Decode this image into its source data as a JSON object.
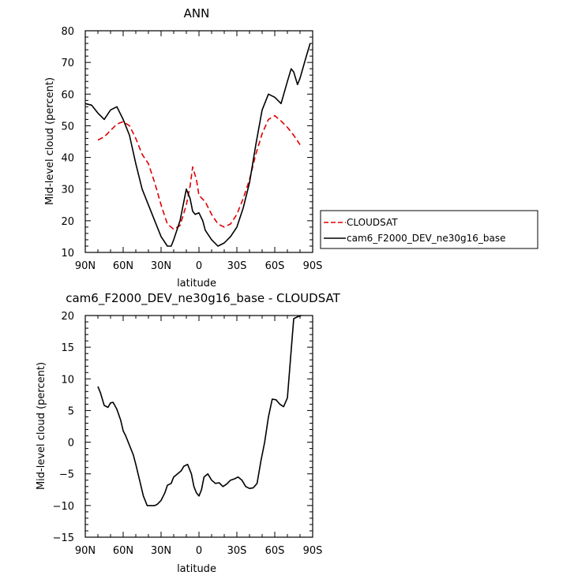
{
  "chart_data": [
    {
      "type": "line",
      "title": "ANN",
      "xlabel": "latitude",
      "ylabel": "Mid-level cloud (percent)",
      "xlim": [
        90,
        -90
      ],
      "ylim": [
        10,
        80
      ],
      "x_ticks": [
        "90N",
        "60N",
        "30N",
        "0",
        "30S",
        "60S",
        "90S"
      ],
      "y_ticks": [
        "10",
        "20",
        "30",
        "40",
        "50",
        "60",
        "70",
        "80"
      ],
      "legend_position": "right",
      "series": [
        {
          "name": "CLOUDSAT",
          "color": "#e00000",
          "dash": "dashed",
          "x": [
            80,
            75,
            70,
            65,
            60,
            55,
            50,
            45,
            40,
            35,
            30,
            25,
            20,
            15,
            10,
            7,
            5,
            2,
            0,
            -5,
            -10,
            -15,
            -20,
            -25,
            -30,
            -35,
            -40,
            -45,
            -50,
            -55,
            -60,
            -65,
            -70,
            -75,
            -80
          ],
          "y": [
            45.5,
            46.5,
            48.5,
            50.5,
            51.3,
            50,
            46,
            41,
            38,
            32,
            25,
            19,
            17.3,
            18.5,
            25,
            31,
            37,
            33,
            28,
            26,
            22,
            19,
            18,
            19,
            22,
            27,
            33,
            41,
            47.5,
            52,
            53.2,
            51.5,
            49.5,
            47,
            44
          ]
        },
        {
          "name": "cam6_F2000_DEV_ne30g16_base",
          "color": "#000000",
          "dash": "solid",
          "x": [
            90,
            85,
            80,
            75,
            70,
            65,
            60,
            55,
            50,
            45,
            40,
            35,
            30,
            25,
            22,
            20,
            15,
            10,
            7,
            5,
            3,
            0,
            -3,
            -5,
            -10,
            -15,
            -20,
            -25,
            -30,
            -35,
            -40,
            -45,
            -50,
            -55,
            -60,
            -65,
            -70,
            -73,
            -75,
            -78,
            -80,
            -85,
            -88
          ],
          "y": [
            57,
            56.5,
            54,
            52,
            55,
            56,
            52,
            47,
            38,
            30,
            25,
            20,
            15,
            12,
            12,
            14,
            20,
            30,
            27,
            23,
            22,
            22.5,
            20,
            17,
            14,
            12,
            13,
            15,
            18,
            24,
            32,
            44,
            55,
            60,
            59,
            57,
            64,
            68,
            67,
            63,
            65,
            72,
            76
          ]
        }
      ]
    },
    {
      "type": "line",
      "title": "cam6_F2000_DEV_ne30g16_base - CLOUDSAT",
      "xlabel": "latitude",
      "ylabel": "Mid-level cloud (percent)",
      "xlim": [
        90,
        -90
      ],
      "ylim": [
        -15,
        20
      ],
      "x_ticks": [
        "90N",
        "60N",
        "30N",
        "0",
        "30S",
        "60S",
        "90S"
      ],
      "y_ticks": [
        "-15",
        "-10",
        "-5",
        "0",
        "5",
        "10",
        "15",
        "20"
      ],
      "series": [
        {
          "color": "#000000",
          "dash": "solid",
          "x": [
            80,
            78,
            75,
            72,
            70,
            68,
            65,
            62,
            60,
            58,
            55,
            52,
            50,
            47,
            44,
            41,
            38,
            35,
            33,
            30,
            27,
            25,
            22,
            20,
            17,
            14,
            12,
            9,
            6,
            4,
            2,
            0,
            -2,
            -4,
            -7,
            -10,
            -13,
            -16,
            -19,
            -22,
            -25,
            -28,
            -31,
            -34,
            -37,
            -40,
            -43,
            -46,
            -49,
            -52,
            -55,
            -58,
            -61,
            -64,
            -67,
            -70,
            -72,
            -75,
            -78,
            -81
          ],
          "y": [
            8.8,
            7.8,
            5.8,
            5.5,
            6.2,
            6.3,
            5.2,
            3.5,
            1.8,
            1,
            -0.5,
            -2,
            -3.5,
            -6,
            -8.5,
            -10,
            -10,
            -10,
            -9.8,
            -9.2,
            -8,
            -6.8,
            -6.5,
            -5.5,
            -5,
            -4.5,
            -3.8,
            -3.5,
            -5,
            -7,
            -8,
            -8.5,
            -7.5,
            -5.5,
            -5,
            -6,
            -6.5,
            -6.4,
            -7,
            -6.6,
            -6,
            -5.8,
            -5.5,
            -6,
            -7,
            -7.3,
            -7.2,
            -6.5,
            -3,
            0,
            4,
            6.8,
            6.7,
            6,
            5.6,
            7,
            12,
            19.5,
            19.8,
            20
          ]
        }
      ]
    }
  ]
}
